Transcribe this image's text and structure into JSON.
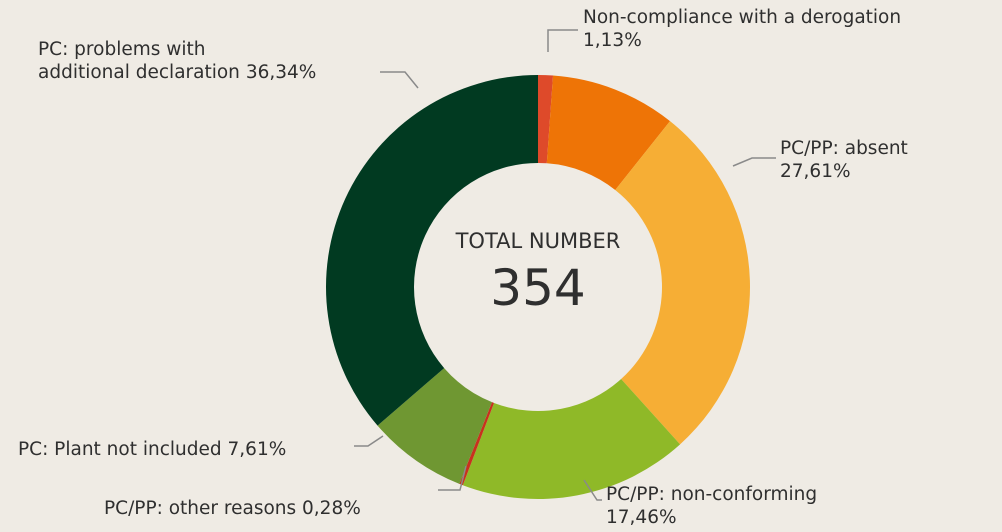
{
  "chart_data": {
    "type": "donut",
    "categories": [
      "Non-compliance with a derogation",
      null,
      "PC/PP: absent",
      "PC/PP: non-conforming",
      "PC/PP: other reasons",
      "PC: Plant not included",
      "PC: problems with additional declaration"
    ],
    "values": [
      1.13,
      9.57,
      27.61,
      17.46,
      0.28,
      7.61,
      36.34
    ],
    "value_labels": [
      "1,13%",
      null,
      "27,61%",
      "17,46%",
      "0,28%",
      "7,61%",
      "36,34%"
    ],
    "colors": [
      "#de4a2a",
      "#ee7406",
      "#f6ae35",
      "#8fb928",
      "#c8321e",
      "#6f9732",
      "#013a21"
    ],
    "center_label": "TOTAL NUMBER",
    "total": 354
  }
}
